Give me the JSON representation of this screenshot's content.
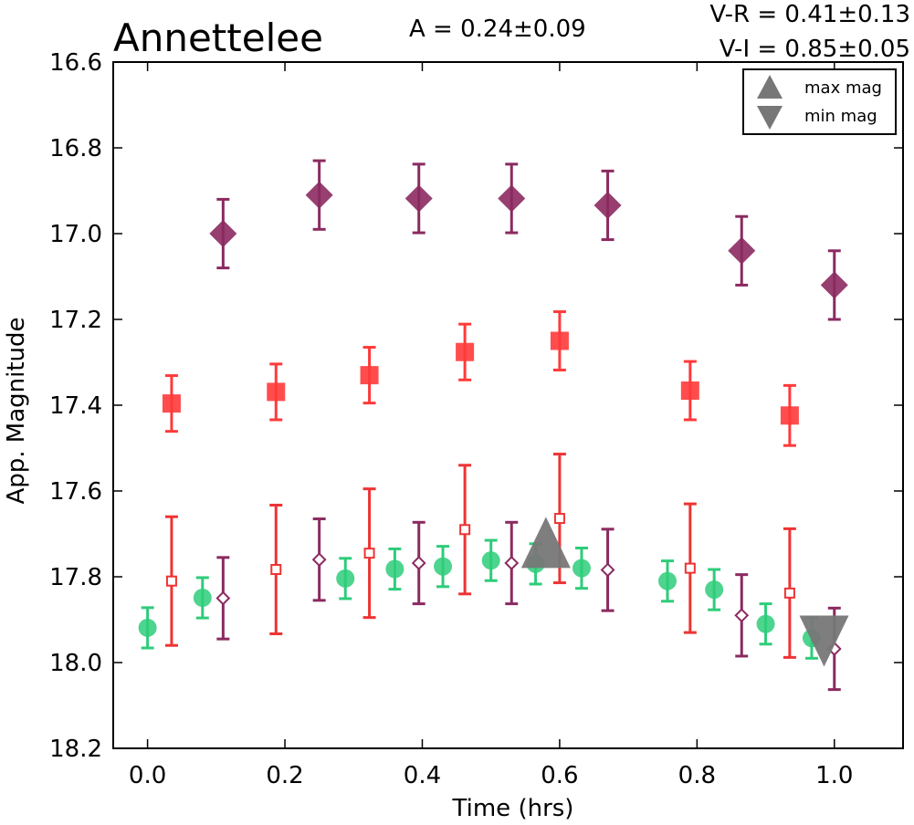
{
  "chart_data": {
    "type": "scatter",
    "title": "Annettelee",
    "amplitude_text": "A  = 0.24±0.09",
    "color_text": [
      "V-R = 0.41±0.13",
      "V-I  = 0.85±0.05"
    ],
    "xlabel": "Time (hrs)",
    "ylabel": "App. Magnitude",
    "xlim": [
      -0.05,
      1.1
    ],
    "ylim": [
      18.2,
      16.6
    ],
    "y_inverted": true,
    "x_ticks": [
      "0.0",
      "0.2",
      "0.4",
      "0.6",
      "0.8",
      "1.0"
    ],
    "y_ticks": [
      "16.6",
      "16.8",
      "17.0",
      "17.2",
      "17.4",
      "17.6",
      "17.8",
      "18.0",
      "18.2"
    ],
    "grid": false,
    "legend_position": "top-right",
    "legend": [
      {
        "label": "max mag",
        "marker": "triangle-up",
        "color": "#777777"
      },
      {
        "label": "min mag",
        "marker": "triangle-down",
        "color": "#777777"
      }
    ],
    "series": [
      {
        "marker": "diamond-filled",
        "color": "#8b2a60",
        "points": [
          {
            "x": 0.11,
            "y": 17.0,
            "err": 0.08
          },
          {
            "x": 0.25,
            "y": 16.91,
            "err": 0.08
          },
          {
            "x": 0.395,
            "y": 16.918,
            "err": 0.08
          },
          {
            "x": 0.53,
            "y": 16.918,
            "err": 0.08
          },
          {
            "x": 0.67,
            "y": 16.934,
            "err": 0.08
          },
          {
            "x": 0.865,
            "y": 17.04,
            "err": 0.08
          },
          {
            "x": 1.0,
            "y": 17.12,
            "err": 0.08
          }
        ]
      },
      {
        "marker": "square-filled",
        "color": "#ff3a3a",
        "points": [
          {
            "x": 0.035,
            "y": 17.396,
            "err": 0.065
          },
          {
            "x": 0.187,
            "y": 17.369,
            "err": 0.065
          },
          {
            "x": 0.323,
            "y": 17.33,
            "err": 0.065
          },
          {
            "x": 0.462,
            "y": 17.276,
            "err": 0.065
          },
          {
            "x": 0.6,
            "y": 17.25,
            "err": 0.068
          },
          {
            "x": 0.79,
            "y": 17.366,
            "err": 0.068
          },
          {
            "x": 0.935,
            "y": 17.424,
            "err": 0.07
          }
        ]
      },
      {
        "marker": "circle-filled",
        "color": "#2ecc7a",
        "points": [
          {
            "x": 0.0,
            "y": 17.919,
            "err": 0.047
          },
          {
            "x": 0.08,
            "y": 17.849,
            "err": 0.047
          },
          {
            "x": 0.288,
            "y": 17.804,
            "err": 0.047
          },
          {
            "x": 0.36,
            "y": 17.782,
            "err": 0.047
          },
          {
            "x": 0.43,
            "y": 17.776,
            "err": 0.047
          },
          {
            "x": 0.5,
            "y": 17.762,
            "err": 0.047
          },
          {
            "x": 0.565,
            "y": 17.77,
            "err": 0.047
          },
          {
            "x": 0.632,
            "y": 17.78,
            "err": 0.047
          },
          {
            "x": 0.757,
            "y": 17.81,
            "err": 0.047
          },
          {
            "x": 0.825,
            "y": 17.83,
            "err": 0.047
          },
          {
            "x": 0.9,
            "y": 17.91,
            "err": 0.047
          },
          {
            "x": 0.967,
            "y": 17.943,
            "err": 0.047
          }
        ]
      },
      {
        "marker": "square-open",
        "color": "#ee3333",
        "points": [
          {
            "x": 0.035,
            "y": 17.81,
            "err": 0.15
          },
          {
            "x": 0.187,
            "y": 17.783,
            "err": 0.15
          },
          {
            "x": 0.323,
            "y": 17.745,
            "err": 0.15
          },
          {
            "x": 0.462,
            "y": 17.69,
            "err": 0.15
          },
          {
            "x": 0.6,
            "y": 17.664,
            "err": 0.15
          },
          {
            "x": 0.79,
            "y": 17.78,
            "err": 0.15
          },
          {
            "x": 0.935,
            "y": 17.838,
            "err": 0.15
          }
        ]
      },
      {
        "marker": "diamond-open",
        "color": "#8b2a60",
        "points": [
          {
            "x": 0.11,
            "y": 17.85,
            "err": 0.095
          },
          {
            "x": 0.25,
            "y": 17.76,
            "err": 0.095
          },
          {
            "x": 0.395,
            "y": 17.768,
            "err": 0.095
          },
          {
            "x": 0.53,
            "y": 17.768,
            "err": 0.095
          },
          {
            "x": 0.67,
            "y": 17.784,
            "err": 0.095
          },
          {
            "x": 0.865,
            "y": 17.89,
            "err": 0.095
          },
          {
            "x": 1.0,
            "y": 17.968,
            "err": 0.095
          }
        ]
      }
    ],
    "extrema": [
      {
        "type": "max",
        "x": 0.58,
        "y": 17.72,
        "marker": "triangle-up",
        "color": "#777777"
      },
      {
        "type": "min",
        "x": 0.985,
        "y": 17.95,
        "marker": "triangle-down",
        "color": "#777777"
      }
    ]
  }
}
